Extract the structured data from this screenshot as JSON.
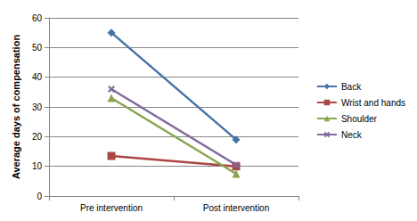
{
  "chart_data": {
    "type": "line",
    "y_label": "Average days of compensation",
    "categories": [
      "Pre intervention",
      "Post intervention"
    ],
    "series": [
      {
        "name": "Back",
        "color": "#4572a7",
        "marker": "diamond",
        "values": [
          55,
          19
        ]
      },
      {
        "name": "Wrist and hands",
        "color": "#aa4643",
        "marker": "square",
        "values": [
          13.5,
          10
        ]
      },
      {
        "name": "Shoulder",
        "color": "#89a54e",
        "marker": "triangle",
        "values": [
          33,
          7.5
        ]
      },
      {
        "name": "Neck",
        "color": "#80699b",
        "marker": "x",
        "values": [
          36,
          10.5
        ]
      }
    ],
    "ylim": [
      0,
      60
    ],
    "yticks": [
      0,
      10,
      20,
      30,
      40,
      50,
      60
    ],
    "grid": true,
    "legend": "right"
  }
}
